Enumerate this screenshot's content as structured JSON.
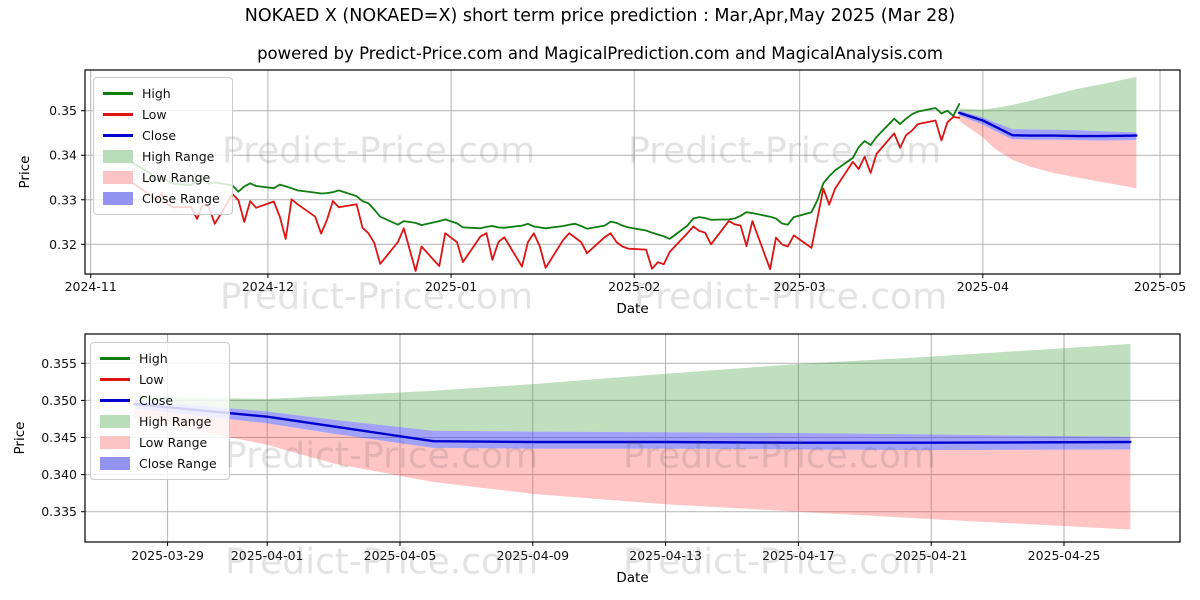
{
  "title": "NOKAED X (NOKAED=X) short term price prediction : Mar,Apr,May 2025 (Mar 28)",
  "subtitle": "powered by Predict-Price.com and MagicalPrediction.com and MagicalAnalysis.com",
  "watermark": {
    "text": "Predict-Price.com"
  },
  "legend": {
    "items": [
      {
        "label": "High",
        "kind": "line",
        "swatch": "#0f7d0f"
      },
      {
        "label": "Low",
        "kind": "line",
        "swatch": "#dd1414"
      },
      {
        "label": "Close",
        "kind": "line",
        "swatch": "#0000cc"
      },
      {
        "label": "High Range",
        "kind": "band",
        "swatch": "#b9dcb9"
      },
      {
        "label": "Low Range",
        "kind": "band",
        "swatch": "#fbc3c3"
      },
      {
        "label": "Close Range",
        "kind": "band",
        "swatch": "#9393f2"
      }
    ]
  },
  "chart_data": [
    {
      "type": "line",
      "name": "full-history-with-forecast",
      "xlabel": "Date",
      "ylabel": "Price",
      "ylim": [
        0.3133,
        0.3591
      ],
      "grid": true,
      "legend_position": "upper-left",
      "x_ticks": [
        {
          "label": "2024-11",
          "date": "2024-11-01"
        },
        {
          "label": "2024-12",
          "date": "2024-12-01"
        },
        {
          "label": "2025-01",
          "date": "2025-01-01"
        },
        {
          "label": "2025-02",
          "date": "2025-02-01"
        },
        {
          "label": "2025-03",
          "date": "2025-03-01"
        },
        {
          "label": "2025-04",
          "date": "2025-04-01"
        },
        {
          "label": "2025-05",
          "date": "2025-05-01"
        }
      ],
      "y_ticks": [
        {
          "label": "0.32",
          "value": 0.32
        },
        {
          "label": "0.33",
          "value": 0.33
        },
        {
          "label": "0.34",
          "value": 0.34
        },
        {
          "label": "0.35",
          "value": 0.35
        }
      ],
      "series": [
        {
          "name": "High",
          "color": "#0f7d0f",
          "width": 1.8,
          "dates": [
            "2024-11-08",
            "2024-11-11",
            "2024-11-12",
            "2024-11-13",
            "2024-11-14",
            "2024-11-15",
            "2024-11-18",
            "2024-11-19",
            "2024-11-20",
            "2024-11-21",
            "2024-11-22",
            "2024-11-25",
            "2024-11-26",
            "2024-11-27",
            "2024-11-28",
            "2024-11-29",
            "2024-12-02",
            "2024-12-03",
            "2024-12-04",
            "2024-12-05",
            "2024-12-06",
            "2024-12-09",
            "2024-12-10",
            "2024-12-11",
            "2024-12-12",
            "2024-12-13",
            "2024-12-16",
            "2024-12-17",
            "2024-12-18",
            "2024-12-19",
            "2024-12-20",
            "2024-12-23",
            "2024-12-24",
            "2024-12-26",
            "2024-12-27",
            "2024-12-30",
            "2024-12-31",
            "2025-01-02",
            "2025-01-03",
            "2025-01-06",
            "2025-01-07",
            "2025-01-08",
            "2025-01-09",
            "2025-01-10",
            "2025-01-13",
            "2025-01-14",
            "2025-01-15",
            "2025-01-16",
            "2025-01-17",
            "2025-01-20",
            "2025-01-21",
            "2025-01-22",
            "2025-01-23",
            "2025-01-24",
            "2025-01-27",
            "2025-01-28",
            "2025-01-29",
            "2025-01-30",
            "2025-01-31",
            "2025-02-03",
            "2025-02-04",
            "2025-02-05",
            "2025-02-06",
            "2025-02-07",
            "2025-02-10",
            "2025-02-11",
            "2025-02-12",
            "2025-02-13",
            "2025-02-14",
            "2025-02-17",
            "2025-02-18",
            "2025-02-19",
            "2025-02-20",
            "2025-02-21",
            "2025-02-24",
            "2025-02-25",
            "2025-02-26",
            "2025-02-27",
            "2025-02-28",
            "2025-03-03",
            "2025-03-04",
            "2025-03-05",
            "2025-03-06",
            "2025-03-07",
            "2025-03-10",
            "2025-03-11",
            "2025-03-12",
            "2025-03-13",
            "2025-03-14",
            "2025-03-17",
            "2025-03-18",
            "2025-03-19",
            "2025-03-20",
            "2025-03-21",
            "2025-03-24",
            "2025-03-25",
            "2025-03-26",
            "2025-03-27",
            "2025-03-28"
          ],
          "values": [
            0.3384,
            0.336,
            0.3344,
            0.3352,
            0.3342,
            0.3336,
            0.3333,
            0.3342,
            0.3348,
            0.3336,
            0.3339,
            0.3332,
            0.3318,
            0.333,
            0.3337,
            0.3331,
            0.3326,
            0.3334,
            0.333,
            0.3326,
            0.3321,
            0.3316,
            0.3314,
            0.3315,
            0.3317,
            0.3321,
            0.3308,
            0.3297,
            0.3292,
            0.3278,
            0.3262,
            0.3244,
            0.3252,
            0.3248,
            0.3243,
            0.3252,
            0.3256,
            0.3247,
            0.3238,
            0.3236,
            0.3239,
            0.3241,
            0.3238,
            0.3237,
            0.3242,
            0.3246,
            0.324,
            0.3238,
            0.3236,
            0.3241,
            0.3244,
            0.3246,
            0.3241,
            0.3235,
            0.3242,
            0.3251,
            0.3248,
            0.3242,
            0.3238,
            0.3231,
            0.3226,
            0.3222,
            0.3218,
            0.3212,
            0.3242,
            0.3258,
            0.3261,
            0.3259,
            0.3255,
            0.3256,
            0.3258,
            0.3264,
            0.3272,
            0.327,
            0.3262,
            0.3258,
            0.3247,
            0.3244,
            0.3261,
            0.3272,
            0.3299,
            0.3337,
            0.3353,
            0.3366,
            0.3394,
            0.3418,
            0.3432,
            0.3423,
            0.3441,
            0.3482,
            0.347,
            0.3482,
            0.3492,
            0.3498,
            0.3506,
            0.3494,
            0.35,
            0.3488,
            0.3515
          ]
        },
        {
          "name": "Low",
          "color": "#dd1414",
          "width": 1.8,
          "dates": [
            "2024-11-08",
            "2024-11-11",
            "2024-11-12",
            "2024-11-13",
            "2024-11-14",
            "2024-11-15",
            "2024-11-18",
            "2024-11-19",
            "2024-11-20",
            "2024-11-21",
            "2024-11-22",
            "2024-11-25",
            "2024-11-26",
            "2024-11-27",
            "2024-11-28",
            "2024-11-29",
            "2024-12-02",
            "2024-12-03",
            "2024-12-04",
            "2024-12-05",
            "2024-12-06",
            "2024-12-09",
            "2024-12-10",
            "2024-12-11",
            "2024-12-12",
            "2024-12-13",
            "2024-12-16",
            "2024-12-17",
            "2024-12-18",
            "2024-12-19",
            "2024-12-20",
            "2024-12-23",
            "2024-12-24",
            "2024-12-26",
            "2024-12-27",
            "2024-12-30",
            "2024-12-31",
            "2025-01-02",
            "2025-01-03",
            "2025-01-06",
            "2025-01-07",
            "2025-01-08",
            "2025-01-09",
            "2025-01-10",
            "2025-01-13",
            "2025-01-14",
            "2025-01-15",
            "2025-01-16",
            "2025-01-17",
            "2025-01-20",
            "2025-01-21",
            "2025-01-22",
            "2025-01-23",
            "2025-01-24",
            "2025-01-27",
            "2025-01-28",
            "2025-01-29",
            "2025-01-30",
            "2025-01-31",
            "2025-02-03",
            "2025-02-04",
            "2025-02-05",
            "2025-02-06",
            "2025-02-07",
            "2025-02-10",
            "2025-02-11",
            "2025-02-12",
            "2025-02-13",
            "2025-02-14",
            "2025-02-17",
            "2025-02-18",
            "2025-02-19",
            "2025-02-20",
            "2025-02-21",
            "2025-02-24",
            "2025-02-25",
            "2025-02-26",
            "2025-02-27",
            "2025-02-28",
            "2025-03-03",
            "2025-03-04",
            "2025-03-05",
            "2025-03-06",
            "2025-03-07",
            "2025-03-10",
            "2025-03-11",
            "2025-03-12",
            "2025-03-13",
            "2025-03-14",
            "2025-03-17",
            "2025-03-18",
            "2025-03-19",
            "2025-03-20",
            "2025-03-21",
            "2025-03-24",
            "2025-03-25",
            "2025-03-26",
            "2025-03-27",
            "2025-03-28"
          ],
          "values": [
            0.3338,
            0.3312,
            0.3298,
            0.3315,
            0.329,
            0.3283,
            0.3284,
            0.3257,
            0.329,
            0.3283,
            0.3246,
            0.3313,
            0.3299,
            0.325,
            0.3297,
            0.3282,
            0.3296,
            0.3262,
            0.3212,
            0.3301,
            0.329,
            0.3262,
            0.3224,
            0.3255,
            0.3297,
            0.3283,
            0.329,
            0.3237,
            0.3225,
            0.3203,
            0.3156,
            0.3205,
            0.3236,
            0.314,
            0.3195,
            0.3151,
            0.3225,
            0.3205,
            0.316,
            0.3218,
            0.3225,
            0.3165,
            0.3205,
            0.3216,
            0.315,
            0.3205,
            0.3225,
            0.3196,
            0.3147,
            0.321,
            0.3225,
            0.3215,
            0.3205,
            0.318,
            0.3216,
            0.3225,
            0.3205,
            0.3195,
            0.319,
            0.3188,
            0.3145,
            0.316,
            0.3155,
            0.3183,
            0.3225,
            0.324,
            0.323,
            0.3226,
            0.32,
            0.3252,
            0.3245,
            0.3242,
            0.3196,
            0.3252,
            0.3144,
            0.3215,
            0.32,
            0.3195,
            0.322,
            0.3192,
            0.3258,
            0.3325,
            0.3289,
            0.3325,
            0.3385,
            0.3369,
            0.3397,
            0.336,
            0.3403,
            0.3449,
            0.3417,
            0.3445,
            0.3455,
            0.347,
            0.3478,
            0.3433,
            0.3474,
            0.3486,
            0.3484
          ]
        },
        {
          "name": "Close",
          "color": "#0000cc",
          "width": 2.4,
          "dates": [
            "2025-03-28",
            "2025-04-01",
            "2025-04-03",
            "2025-04-06",
            "2025-04-09",
            "2025-04-13",
            "2025-04-17",
            "2025-04-21",
            "2025-04-27"
          ],
          "values": [
            0.3495,
            0.3478,
            0.3465,
            0.3445,
            0.3444,
            0.3444,
            0.3443,
            0.3443,
            0.3444
          ]
        }
      ],
      "bands": [
        {
          "name": "High Range",
          "color": "rgba(44,150,44,0.30)",
          "dates": [
            "2025-03-28",
            "2025-04-01",
            "2025-04-03",
            "2025-04-06",
            "2025-04-09",
            "2025-04-13",
            "2025-04-17",
            "2025-04-21",
            "2025-04-27"
          ],
          "upper": [
            0.3505,
            0.3502,
            0.3506,
            0.3513,
            0.3522,
            0.3536,
            0.3549,
            0.3559,
            0.3576
          ],
          "lower": [
            0.35,
            0.3485,
            0.3474,
            0.3459,
            0.3458,
            0.3457,
            0.3456,
            0.3454,
            0.3451
          ]
        },
        {
          "name": "Low Range",
          "color": "rgba(255,70,70,0.32)",
          "dates": [
            "2025-03-28",
            "2025-04-01",
            "2025-04-03",
            "2025-04-06",
            "2025-04-09",
            "2025-04-13",
            "2025-04-17",
            "2025-04-21",
            "2025-04-27"
          ],
          "upper": [
            0.3489,
            0.3469,
            0.3455,
            0.3436,
            0.3435,
            0.3435,
            0.3434,
            0.3433,
            0.3434
          ],
          "lower": [
            0.3477,
            0.344,
            0.3415,
            0.339,
            0.3374,
            0.336,
            0.335,
            0.334,
            0.3326
          ]
        },
        {
          "name": "Close Range",
          "color": "rgba(70,70,245,0.50)",
          "dates": [
            "2025-03-28",
            "2025-04-01",
            "2025-04-03",
            "2025-04-06",
            "2025-04-09",
            "2025-04-13",
            "2025-04-17",
            "2025-04-21",
            "2025-04-27"
          ],
          "upper": [
            0.35,
            0.3485,
            0.3474,
            0.3459,
            0.3458,
            0.3457,
            0.3456,
            0.3454,
            0.3451
          ],
          "lower": [
            0.3489,
            0.3469,
            0.3455,
            0.3436,
            0.3435,
            0.3435,
            0.3434,
            0.3433,
            0.3434
          ]
        }
      ]
    },
    {
      "type": "line",
      "name": "forecast-zoom",
      "xlabel": "Date",
      "ylabel": "Price",
      "ylim": [
        0.331,
        0.3589
      ],
      "grid": true,
      "legend_position": "upper-left",
      "x_ticks": [
        {
          "label": "2025-03-29",
          "date": "2025-03-29"
        },
        {
          "label": "2025-04-01",
          "date": "2025-04-01"
        },
        {
          "label": "2025-04-05",
          "date": "2025-04-05"
        },
        {
          "label": "2025-04-09",
          "date": "2025-04-09"
        },
        {
          "label": "2025-04-13",
          "date": "2025-04-13"
        },
        {
          "label": "2025-04-17",
          "date": "2025-04-17"
        },
        {
          "label": "2025-04-21",
          "date": "2025-04-21"
        },
        {
          "label": "2025-04-25",
          "date": "2025-04-25"
        }
      ],
      "y_ticks": [
        {
          "label": "0.335",
          "value": 0.335
        },
        {
          "label": "0.340",
          "value": 0.34
        },
        {
          "label": "0.345",
          "value": 0.345
        },
        {
          "label": "0.350",
          "value": 0.35
        },
        {
          "label": "0.355",
          "value": 0.355
        }
      ],
      "series": [
        {
          "name": "Close",
          "color": "#0000cc",
          "width": 2.4,
          "dates": [
            "2025-03-28",
            "2025-04-01",
            "2025-04-03",
            "2025-04-06",
            "2025-04-09",
            "2025-04-13",
            "2025-04-17",
            "2025-04-21",
            "2025-04-27"
          ],
          "values": [
            0.3495,
            0.3478,
            0.3465,
            0.3445,
            0.3444,
            0.3444,
            0.3443,
            0.3443,
            0.3444
          ]
        }
      ],
      "bands": [
        {
          "name": "High Range",
          "color": "rgba(44,150,44,0.30)",
          "dates": [
            "2025-03-28",
            "2025-04-01",
            "2025-04-03",
            "2025-04-06",
            "2025-04-09",
            "2025-04-13",
            "2025-04-17",
            "2025-04-21",
            "2025-04-27"
          ],
          "upper": [
            0.3505,
            0.3502,
            0.3506,
            0.3513,
            0.3522,
            0.3536,
            0.3549,
            0.3559,
            0.3576
          ],
          "lower": [
            0.35,
            0.3485,
            0.3474,
            0.3459,
            0.3458,
            0.3457,
            0.3456,
            0.3454,
            0.3451
          ]
        },
        {
          "name": "Low Range",
          "color": "rgba(255,70,70,0.32)",
          "dates": [
            "2025-03-28",
            "2025-04-01",
            "2025-04-03",
            "2025-04-06",
            "2025-04-09",
            "2025-04-13",
            "2025-04-17",
            "2025-04-21",
            "2025-04-27"
          ],
          "upper": [
            0.3489,
            0.3469,
            0.3455,
            0.3436,
            0.3435,
            0.3435,
            0.3434,
            0.3433,
            0.3434
          ],
          "lower": [
            0.3477,
            0.344,
            0.3415,
            0.339,
            0.3374,
            0.336,
            0.335,
            0.334,
            0.3326
          ]
        },
        {
          "name": "Close Range",
          "color": "rgba(70,70,245,0.50)",
          "dates": [
            "2025-03-28",
            "2025-04-01",
            "2025-04-03",
            "2025-04-06",
            "2025-04-09",
            "2025-04-13",
            "2025-04-17",
            "2025-04-21",
            "2025-04-27"
          ],
          "upper": [
            0.35,
            0.3485,
            0.3474,
            0.3459,
            0.3458,
            0.3457,
            0.3456,
            0.3454,
            0.3451
          ],
          "lower": [
            0.3489,
            0.3469,
            0.3455,
            0.3436,
            0.3435,
            0.3435,
            0.3434,
            0.3433,
            0.3434
          ]
        }
      ]
    }
  ]
}
